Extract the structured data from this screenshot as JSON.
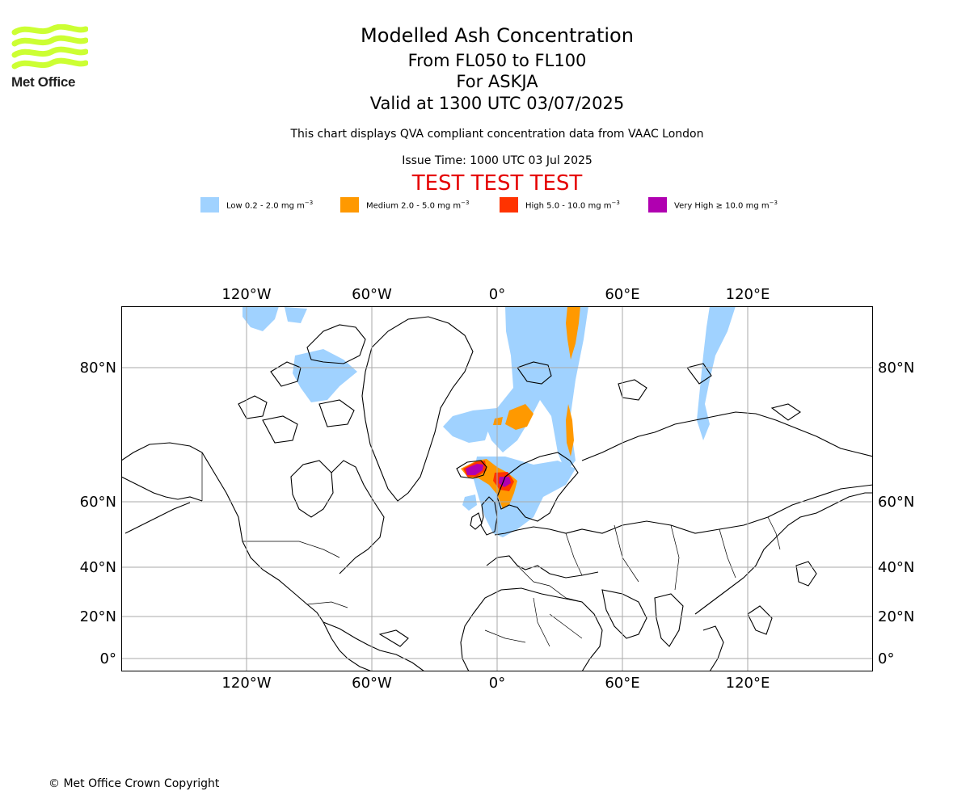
{
  "logo": {
    "text": "Met Office",
    "color": "#ccff33"
  },
  "header": {
    "title": "Modelled Ash Concentration",
    "levels": "From FL050 to FL100",
    "volcano": "For ASKJA",
    "valid": "Valid at 1300 UTC 03/07/2025",
    "subtitle": "This chart displays QVA compliant concentration data from VAAC London",
    "issue": "Issue Time: 1000 UTC 03 Jul 2025",
    "test_banner": "TEST TEST TEST"
  },
  "legend": [
    {
      "label": "Low 0.2 - 2.0 mg m",
      "exp": "−3",
      "color": "#a0d2ff"
    },
    {
      "label": "Medium 2.0 - 5.0 mg m",
      "exp": "−3",
      "color": "#ff9900"
    },
    {
      "label": "High 5.0 - 10.0 mg m",
      "exp": "−3",
      "color": "#ff3300"
    },
    {
      "label": "Very High ≥ 10.0 mg m",
      "exp": "−3",
      "color": "#b000b0"
    }
  ],
  "map": {
    "lon_labels": [
      "120°W",
      "60°W",
      "0°",
      "60°E",
      "120°E"
    ],
    "lat_labels": [
      "80°N",
      "60°N",
      "40°N",
      "20°N",
      "0°"
    ]
  },
  "footer": {
    "copyright": "© Met Office Crown Copyright"
  }
}
